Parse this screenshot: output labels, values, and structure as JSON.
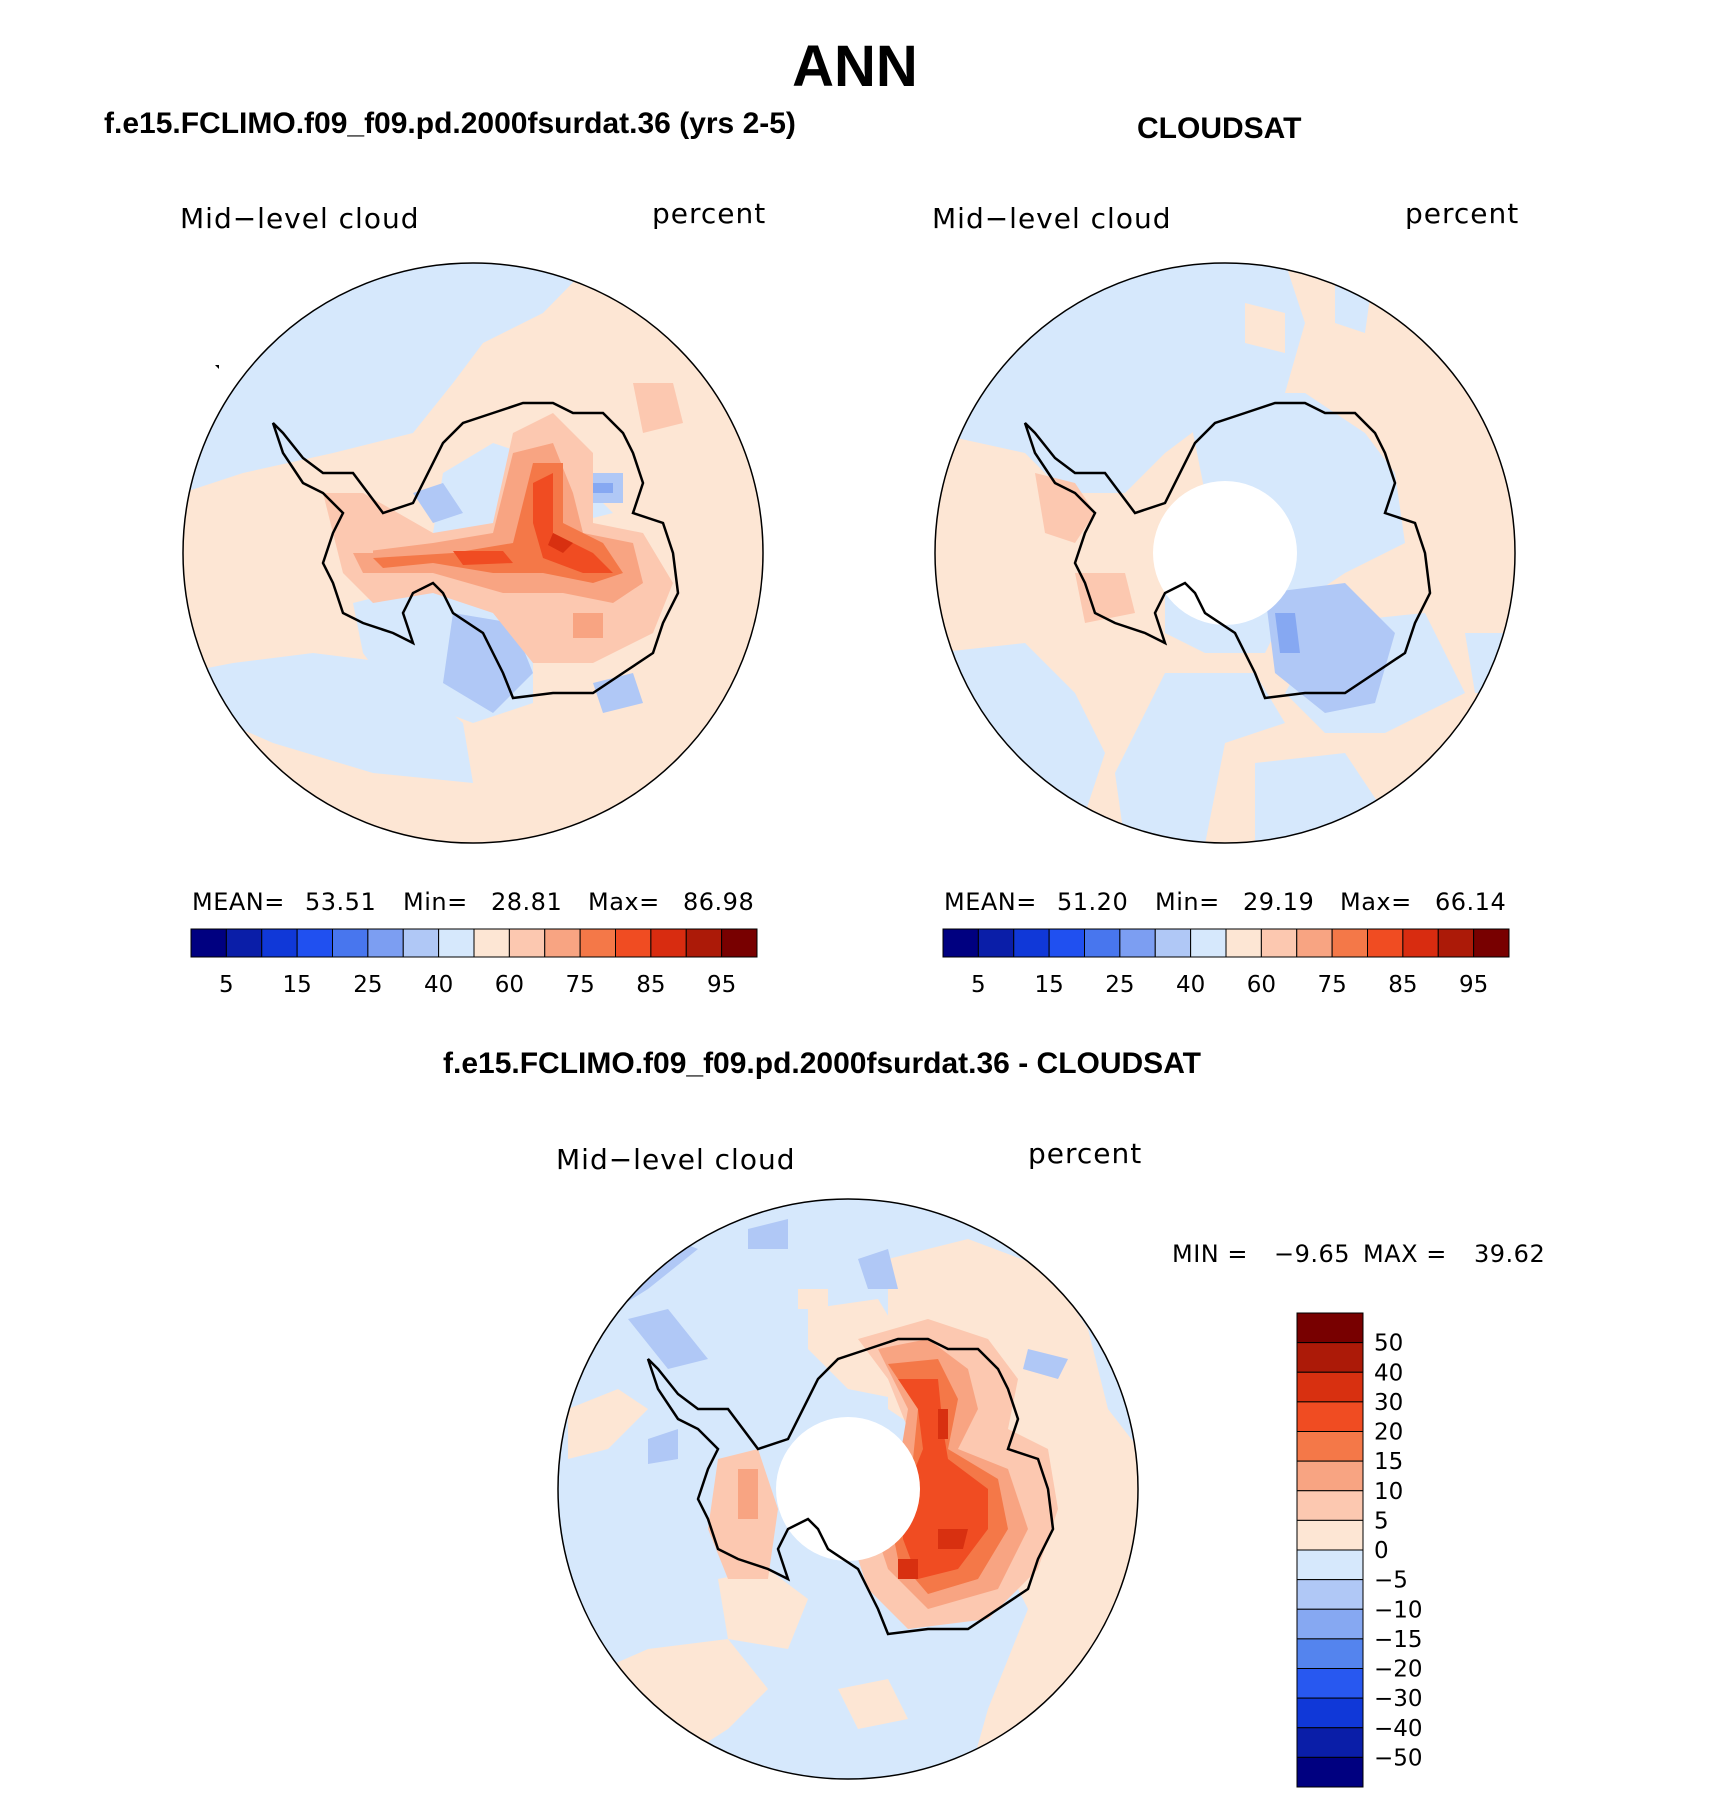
{
  "title": "ANN",
  "panels": [
    {
      "case_title": "f.e15.FCLIMO.f09_f09.pd.2000fsurdat.36 (yrs 2-5)",
      "variable": "Mid−level cloud",
      "units": "percent",
      "stats_labels": [
        "MEAN=",
        "Min=",
        "Max="
      ],
      "stats_values": [
        "53.51",
        "28.81",
        "86.98"
      ],
      "colorbar_ticks": [
        "5",
        "15",
        "25",
        "40",
        "60",
        "75",
        "85",
        "95"
      ]
    },
    {
      "case_title": "CLOUDSAT",
      "variable": "Mid−level cloud",
      "units": "percent",
      "stats_labels": [
        "MEAN=",
        "Min=",
        "Max="
      ],
      "stats_values": [
        "51.20",
        "29.19",
        "66.14"
      ],
      "colorbar_ticks": [
        "5",
        "15",
        "25",
        "40",
        "60",
        "75",
        "85",
        "95"
      ]
    },
    {
      "case_title": "f.e15.FCLIMO.f09_f09.pd.2000fsurdat.36 - CLOUDSAT",
      "variable": "Mid−level cloud",
      "units": "percent",
      "min_label": "MIN =",
      "min_value": "−9.65",
      "max_label": "MAX =",
      "max_value": "39.62",
      "colorbar_ticks": [
        "50",
        "40",
        "30",
        "20",
        "15",
        "10",
        "5",
        "0",
        "−5",
        "−10",
        "−15",
        "−20",
        "−30",
        "−40",
        "−50"
      ]
    }
  ],
  "colors": {
    "abs_scale": [
      "#000080",
      "#0a1ea8",
      "#1038d8",
      "#2050f0",
      "#4876ee",
      "#7c9ef2",
      "#b0c8f6",
      "#d6e8fc",
      "#fde6d4",
      "#fcc8b0",
      "#f8a482",
      "#f47848",
      "#f04c22",
      "#d82c10",
      "#ac1a08",
      "#780000"
    ],
    "diff_scale": [
      "#780000",
      "#ac1a08",
      "#d83010",
      "#f04c22",
      "#f47848",
      "#f8a482",
      "#fcc8b0",
      "#fde6d4",
      "#d6e8fc",
      "#b0c8f6",
      "#86a8f2",
      "#5484ee",
      "#2858f0",
      "#1038d8",
      "#0a1ea8",
      "#000080"
    ],
    "coastline": "#000000"
  }
}
